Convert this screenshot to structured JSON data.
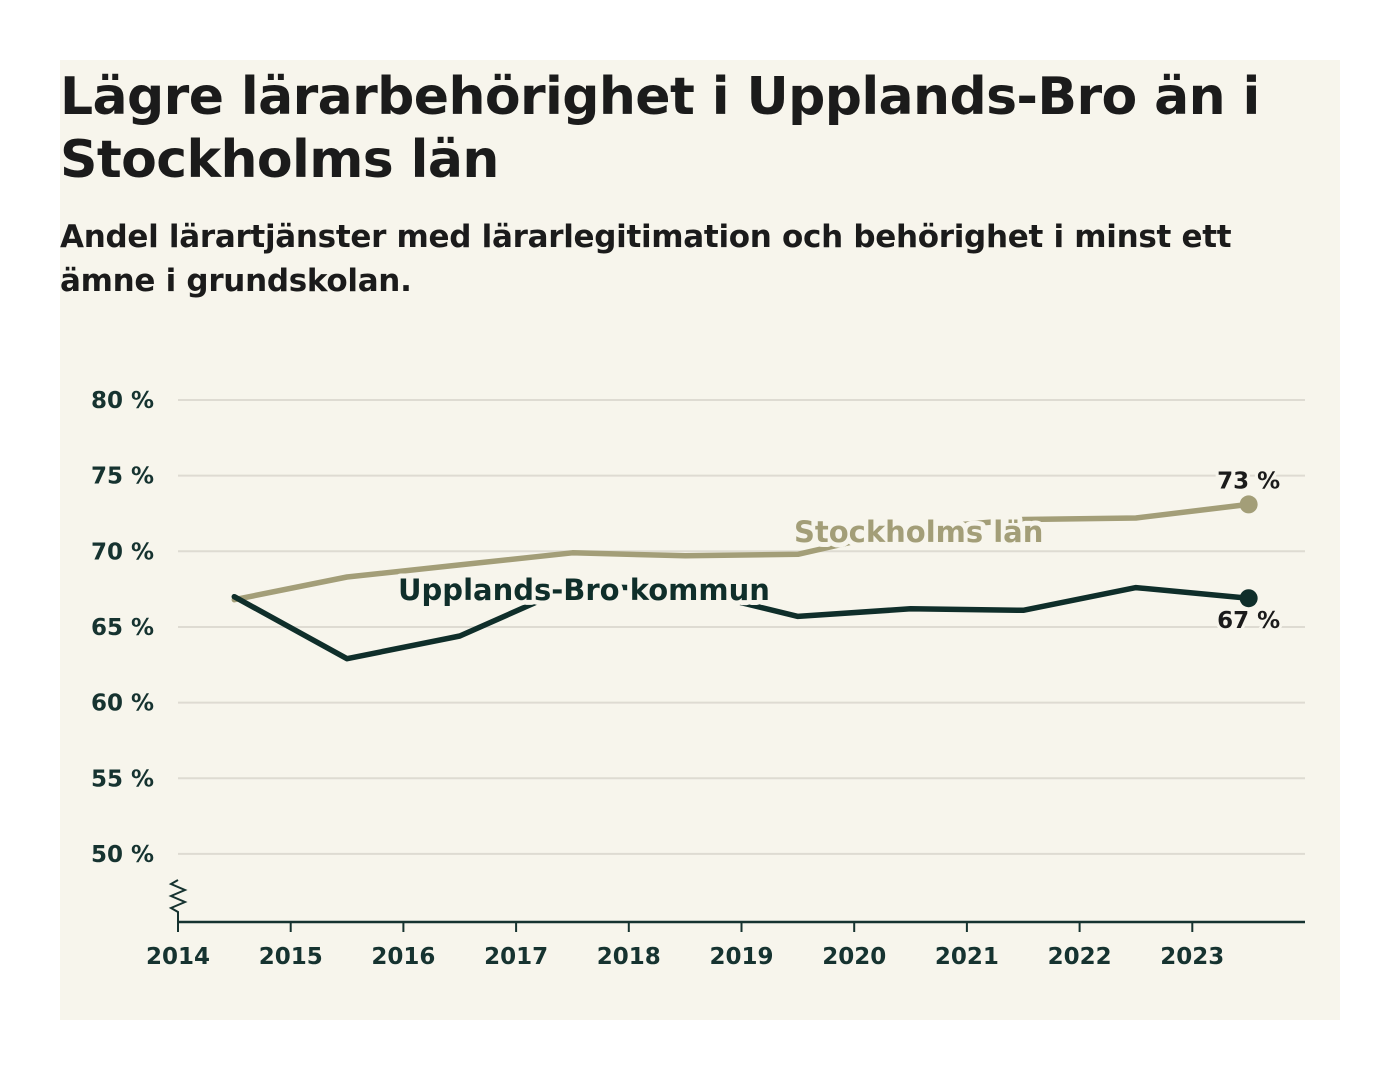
{
  "title": "Lägre lärarbehörighet i Upplands-Bro än i Stockholms län",
  "subtitle": "Andel lärartjänster med lärarlegitimation och behörighet i minst ett ämne i grundskolan.",
  "colors": {
    "background": "#f7f5ec",
    "stockholm": "#a39e78",
    "upplands_bro": "#0f2e2a",
    "grid": "#dedbd2",
    "axis": "#163330"
  },
  "chart_data": {
    "type": "line",
    "title": "Lägre lärarbehörighet i Upplands-Bro än i Stockholms län",
    "xlabel": "",
    "ylabel": "",
    "x": [
      2014.5,
      2015.5,
      2016.5,
      2017.5,
      2018.5,
      2019.5,
      2020.5,
      2021.5,
      2022.5,
      2023.5
    ],
    "xticks": [
      2014,
      2015,
      2016,
      2017,
      2018,
      2019,
      2020,
      2021,
      2022,
      2023
    ],
    "xtick_labels": [
      "2014",
      "2015",
      "2016",
      "2017",
      "2018",
      "2019",
      "2020",
      "2021",
      "2022",
      "2023"
    ],
    "xlim": [
      2014,
      2024
    ],
    "yticks": [
      50,
      55,
      60,
      65,
      70,
      75,
      80
    ],
    "ytick_labels": [
      "50 %",
      "55 %",
      "60 %",
      "65 %",
      "70 %",
      "75 %",
      "80 %"
    ],
    "ylim": [
      45.5,
      80
    ],
    "axis_break": true,
    "grid": true,
    "series": [
      {
        "key": "stockholm",
        "name": "Stockholms län",
        "values": [
          66.8,
          68.3,
          69.1,
          69.9,
          69.7,
          69.8,
          71.5,
          72.1,
          72.2,
          73.1
        ],
        "end_label": "73 %"
      },
      {
        "key": "upplands_bro",
        "name": "Upplands-Bro kommun",
        "values": [
          67.0,
          62.9,
          64.4,
          67.7,
          67.5,
          65.7,
          66.2,
          66.1,
          67.6,
          66.9
        ],
        "end_label": "67 %"
      }
    ]
  }
}
